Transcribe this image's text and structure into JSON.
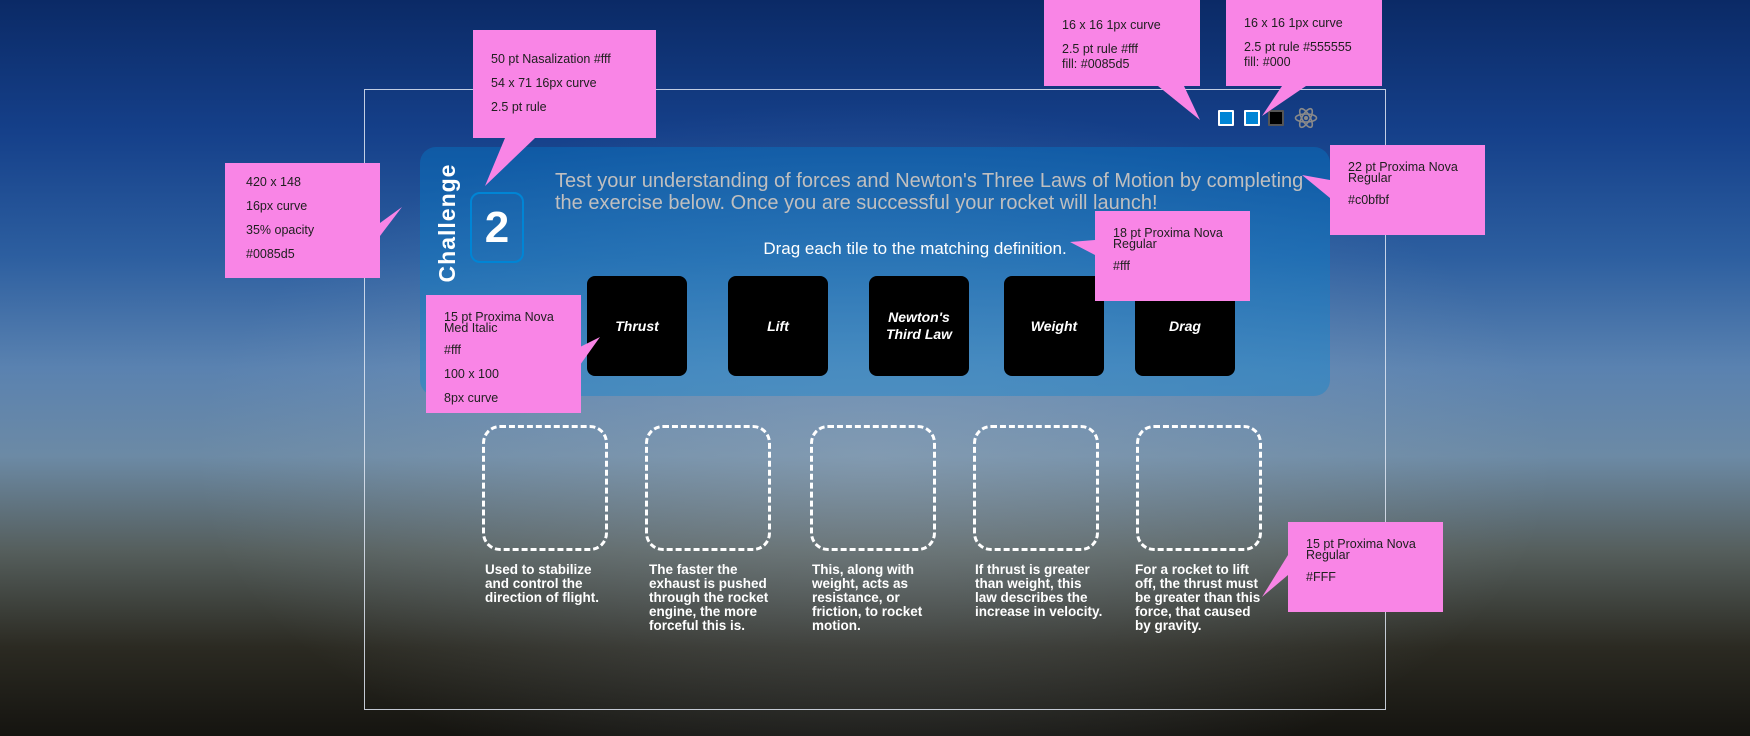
{
  "challenge": {
    "word": "Challenge",
    "number": "2",
    "intro": "Test your understanding of forces and Newton's Three Laws of Motion by completing the exercise below. Once you are successful your rocket will launch!",
    "instruction": "Drag each tile to the matching definition."
  },
  "tiles": [
    {
      "label": "Thrust"
    },
    {
      "label": "Lift"
    },
    {
      "label": "Newton's Third Law"
    },
    {
      "label": "Weight"
    },
    {
      "label": "Drag"
    }
  ],
  "definitions": [
    "Used to stabilize and control the direction of flight.",
    "The faster the exhaust is pushed through the rocket engine, the more forceful this is.",
    "This, along with weight, acts as resistance, or friction, to rocket motion.",
    "If thrust is greater than weight, this law describes the increase in velocity.",
    "For a rocket to lift off, the thrust must be greater than this force, that caused by gravity."
  ],
  "progress": {
    "steps": [
      {
        "state": "complete"
      },
      {
        "state": "complete"
      },
      {
        "state": "incomplete"
      }
    ],
    "icon": "atom-icon"
  },
  "annotations": {
    "number_badge": [
      "50 pt Nasalization  #fff",
      "54 x 71     16px curve",
      "2.5 pt rule"
    ],
    "panel": [
      "420 x 148",
      "16px  curve",
      "35% opacity",
      "#0085d5"
    ],
    "step_filled": [
      "16 x 16     1px curve",
      "2.5 pt rule  #fff",
      "fill: #0085d5"
    ],
    "step_empty": [
      "16 x 16     1px curve",
      "2.5 pt rule  #555555",
      "fill: #000"
    ],
    "intro_text": [
      "22 pt Proxima Nova Regular",
      "#c0bfbf"
    ],
    "instruction_text": [
      "18 pt Proxima Nova Regular",
      "#fff"
    ],
    "tile": [
      "15 pt Proxima Nova Med Italic",
      "#fff",
      "100 x 100",
      "8px  curve"
    ],
    "definition_text": [
      "15 pt Proxima Nova Regular",
      "#FFF"
    ]
  },
  "colors": {
    "panel": "#0085d5",
    "intro_text": "#c0bfbf",
    "annotation": "#f985e6",
    "step_empty_border": "#555555"
  }
}
